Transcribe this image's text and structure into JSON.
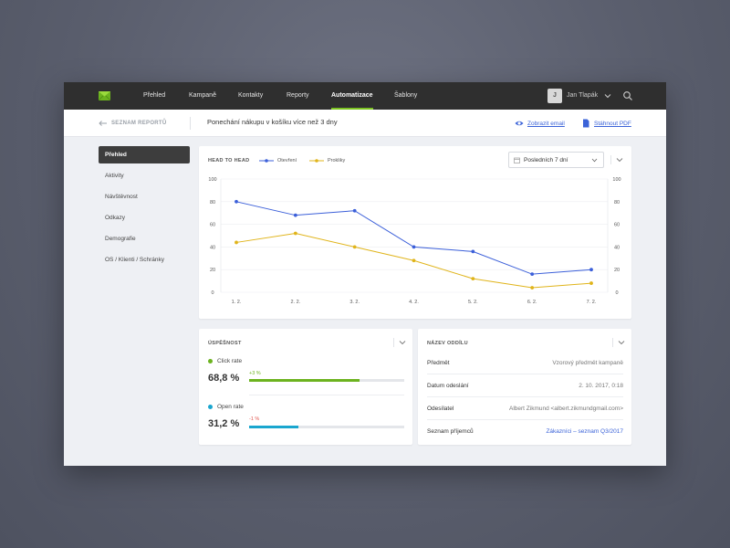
{
  "nav": {
    "items": [
      "Přehled",
      "Kampaně",
      "Kontakty",
      "Reporty",
      "Automatizace",
      "Šablony"
    ],
    "active": "Automatizace",
    "user": {
      "initial": "J",
      "name": "Jan Tlapák"
    },
    "accent": "#7cc221"
  },
  "subheader": {
    "back_label": "SEZNAM REPORTŮ",
    "title": "Ponechání nákupu v košíku více než 3 dny",
    "show_email": "Zobrazit email",
    "download_pdf": "Stáhnout PDF"
  },
  "sidebar": {
    "items": [
      "Přehled",
      "Aktivity",
      "Návštěvnost",
      "Odkazy",
      "Demografie",
      "OS / Klienti / Schránky"
    ]
  },
  "chart_card": {
    "title": "HEAD TO HEAD",
    "date_range": "Posledních 7 dní"
  },
  "chart_data": {
    "type": "line",
    "categories": [
      "1. 2.",
      "2. 2.",
      "3. 2.",
      "4. 2.",
      "5. 2.",
      "6. 2.",
      "7. 2."
    ],
    "series": [
      {
        "name": "Otevření",
        "color": "#3b5fd9",
        "values": [
          80,
          68,
          72,
          40,
          36,
          16,
          20
        ]
      },
      {
        "name": "Prokliky",
        "color": "#e0b41a",
        "values": [
          44,
          52,
          40,
          28,
          12,
          4,
          8
        ]
      }
    ],
    "yticks": [
      "0",
      "20",
      "40",
      "60",
      "80",
      "100"
    ],
    "ylim": [
      0,
      100
    ],
    "grid": true,
    "legend": "top-left"
  },
  "performance": {
    "title": "ÚSPĚŠNOST",
    "metrics": [
      {
        "label": "Click rate",
        "value": "68,8 %",
        "delta": "+3 %",
        "fraction": 0.71,
        "color": "#6cb31f",
        "delta_color": "#6cb31f"
      },
      {
        "label": "Open rate",
        "value": "31,2 %",
        "delta": "-1 %",
        "fraction": 0.32,
        "color": "#1aa6cf",
        "delta_color": "#e0554e"
      }
    ]
  },
  "info": {
    "title": "NÁZEV ODDÍLU",
    "rows": [
      {
        "key": "Předmět",
        "value": "Vzorový předmět kampaně",
        "link": false
      },
      {
        "key": "Datum odeslání",
        "value": "2. 10. 2017, 0:18",
        "link": false
      },
      {
        "key": "Odesílatel",
        "value": "Albert Zikmund <albert.zikmundgmail.com>",
        "link": false
      },
      {
        "key": "Seznam příjemců",
        "value": "Zákazníci – seznam Q3/2017",
        "link": true
      }
    ]
  }
}
